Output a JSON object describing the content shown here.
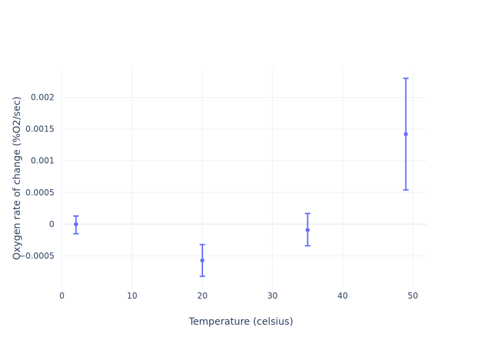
{
  "chart_data": {
    "type": "scatter",
    "title": "",
    "xlabel": "Temperature (celsius)",
    "ylabel": "Oxygen rate of change (%O2/sec)",
    "xlim": [
      0,
      52
    ],
    "ylim": [
      -0.00102,
      0.00245
    ],
    "grid": true,
    "x_ticks": [
      0,
      10,
      20,
      30,
      40,
      50
    ],
    "y_ticks": [
      -0.0005,
      0,
      0.0005,
      0.001,
      0.0015,
      0.002
    ],
    "x_tick_labels": [
      "0",
      "10",
      "20",
      "30",
      "40",
      "50"
    ],
    "y_tick_labels": [
      "−0.0005",
      "0",
      "0.0005",
      "0.001",
      "0.0015",
      "0.002"
    ],
    "series": [
      {
        "x": [
          2,
          20,
          35,
          49
        ],
        "y": [
          0.0,
          -0.00057,
          -9e-05,
          0.00142
        ],
        "error_low": [
          -0.00015,
          -0.00082,
          -0.00034,
          0.00054
        ],
        "error_high": [
          0.00013,
          -0.00032,
          0.00017,
          0.0023
        ],
        "color": "#636efa"
      }
    ]
  }
}
